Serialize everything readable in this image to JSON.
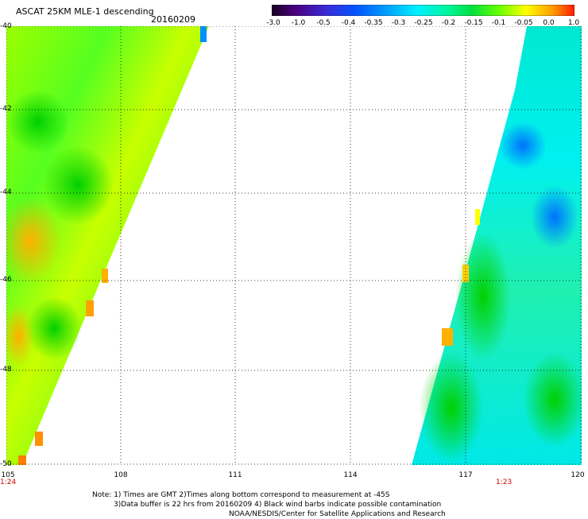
{
  "header": {
    "title": "ASCAT 25KM MLE-1 descending",
    "date": "20160209"
  },
  "colorbar": {
    "labels": [
      "-3.0",
      "-1.0",
      "-0.5",
      "-0.4",
      "-0.35",
      "-0.3",
      "-0.25",
      "-0.2",
      "-0.15",
      "-0.1",
      "-0.05",
      "0.0",
      "1.0"
    ],
    "colors": [
      "#2a0033",
      "#6a00a8",
      "#3a2bd6",
      "#0052ff",
      "#0099ff",
      "#00e5ff",
      "#00f0c8",
      "#00e060",
      "#33ff00",
      "#a8ff00",
      "#ffff00",
      "#ffa000",
      "#ff2200"
    ]
  },
  "axes": {
    "lat_labels": [
      "-40",
      "-42",
      "-44",
      "-46",
      "-48",
      "-50"
    ],
    "lon_labels": [
      "105",
      "108",
      "111",
      "114",
      "117",
      "120"
    ],
    "lat_range": [
      -40,
      -50
    ],
    "lon_range": [
      105,
      120
    ],
    "grid": "dotted"
  },
  "passes": {
    "left_time": "1:24",
    "right_time": "1:23"
  },
  "notes": {
    "line1": "Note: 1) Times are GMT 2)Times along bottom correspond to measurement at -45S",
    "line2": "3)Data buffer is 22 hrs from 20160209 4) Black wind barbs indicate possible contamination",
    "line3": "NOAA/NESDIS/Center for Satellite Applications and Research"
  }
}
